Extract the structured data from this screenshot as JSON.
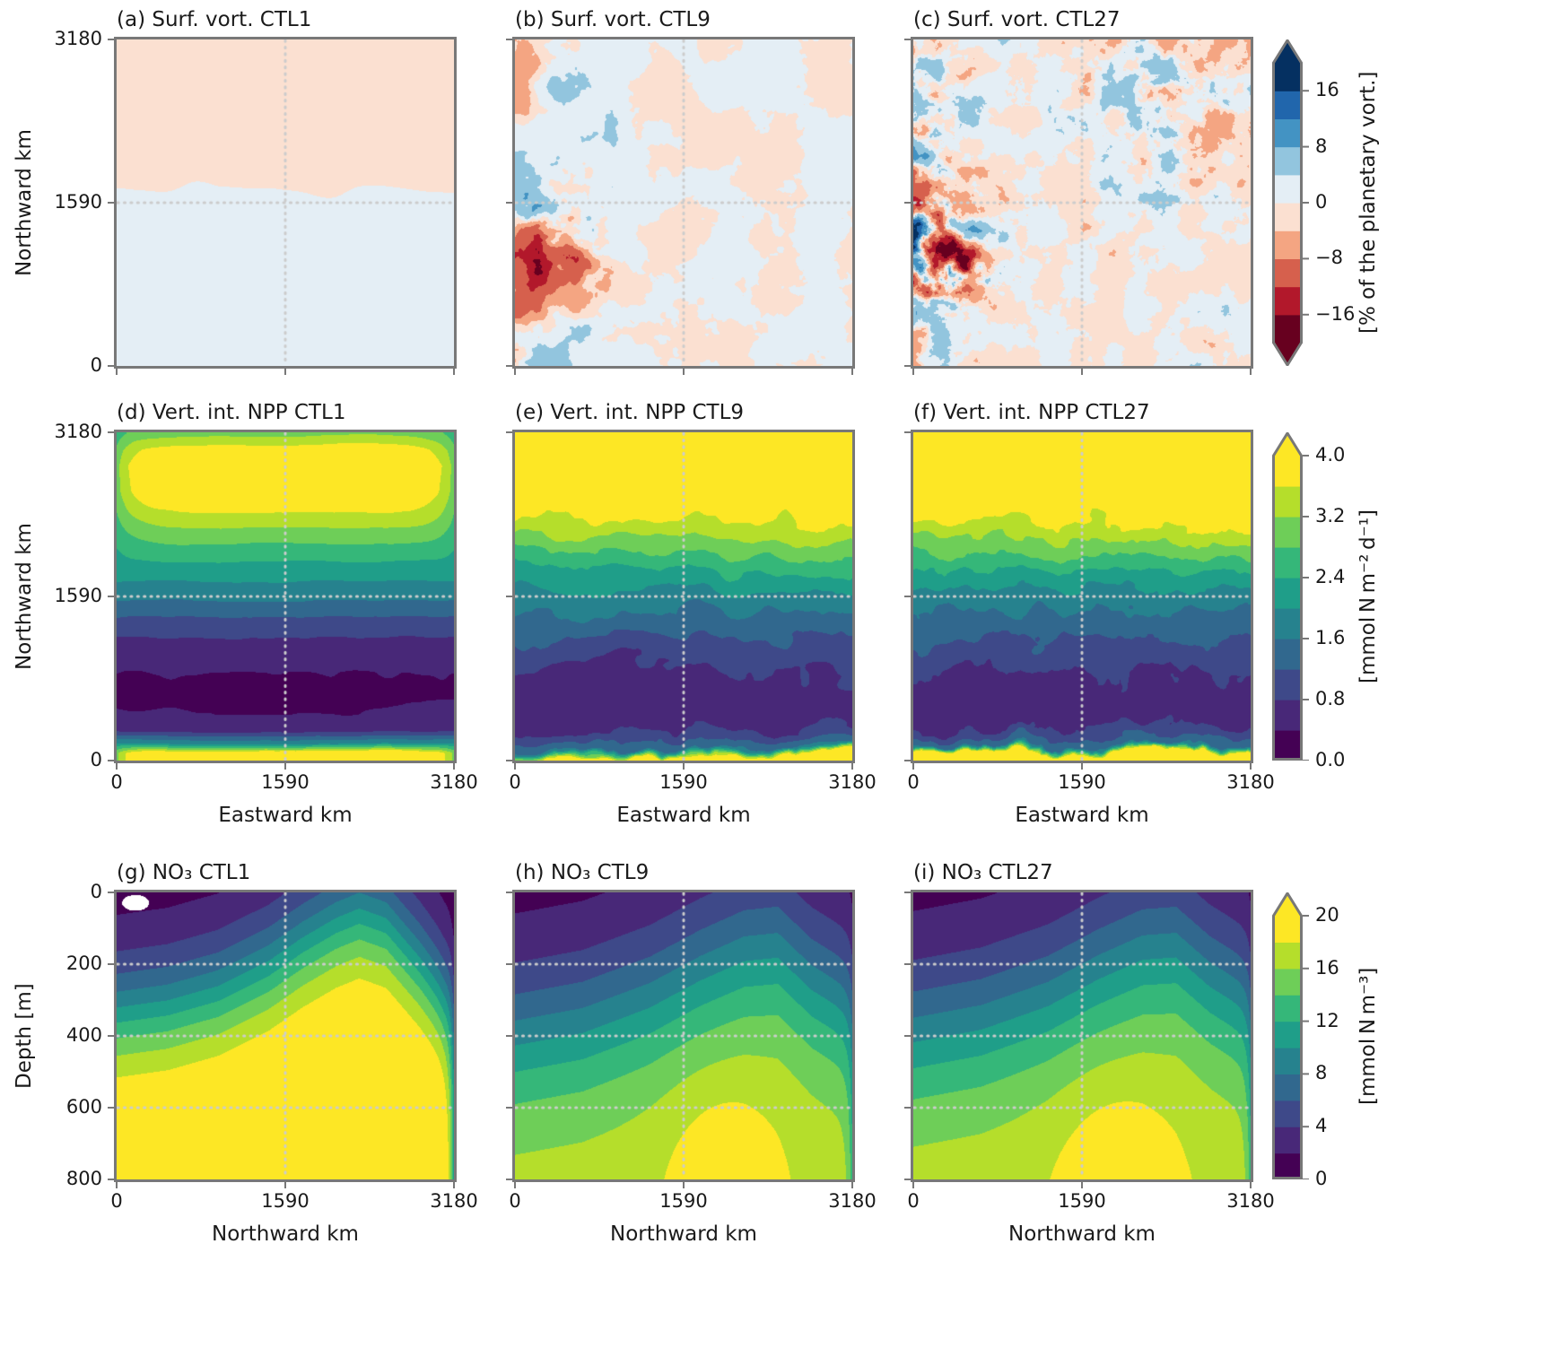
{
  "figure": {
    "background": "#ffffff",
    "text_color": "#1a1a1a",
    "spine_color": "#787878",
    "tick_color": "#787878",
    "gridline_color": "#cccccc"
  },
  "chart_data": {
    "type": "heatmap",
    "grid": "3 rows x 3 columns; columns are model resolutions CTL1, CTL9, CTL27",
    "resolutions": [
      "CTL1",
      "CTL9",
      "CTL27"
    ],
    "rows": [
      {
        "name": "surface-vorticity",
        "panels": [
          {
            "id": "a",
            "title": "(a) Surf. vort. CTL1",
            "field": {
              "kind": "smooth_split",
              "split": 0.53,
              "amplitude": 2.4,
              "noise_amp": 0.8,
              "noise_freq": 3,
              "octaves": 3,
              "seed": 11
            }
          },
          {
            "id": "b",
            "title": "(b) Surf. vort. CTL9",
            "field": {
              "kind": "turbulence",
              "seed": 22,
              "freq": 6.5,
              "octaves": 5,
              "sharpen": 0.7,
              "base_amp": 4.5,
              "left_amp": 10,
              "left_decay": 0.18,
              "blobs": [
                {
                  "x": 0.1,
                  "y": 0.6,
                  "r": 0.15,
                  "amp": 15
                },
                {
                  "x": 0.18,
                  "y": 0.72,
                  "r": 0.1,
                  "amp": 12
                },
                {
                  "x": 0.45,
                  "y": 0.45,
                  "r": 0.25,
                  "amp": 4
                }
              ]
            }
          },
          {
            "id": "c",
            "title": "(c) Surf. vort. CTL27",
            "field": {
              "kind": "turbulence",
              "seed": 33,
              "freq": 12,
              "octaves": 5,
              "sharpen": 0.7,
              "base_amp": 7,
              "left_amp": 11,
              "left_decay": 0.16,
              "blobs": [
                {
                  "x": 0.05,
                  "y": 0.62,
                  "r": 0.13,
                  "amp": 17
                },
                {
                  "x": 0.13,
                  "y": 0.73,
                  "r": 0.1,
                  "amp": 14
                },
                {
                  "x": 0.82,
                  "y": 0.12,
                  "r": 0.3,
                  "amp": 6
                }
              ]
            }
          }
        ],
        "x_axis": {
          "label": "",
          "range": [
            0,
            3180
          ],
          "tick_values": [
            0,
            1590,
            3180
          ],
          "tick_labels": [],
          "shared_with_row_below": true
        },
        "y_axis": {
          "label": "Northward km",
          "range": [
            0,
            3180
          ],
          "tick_values": [
            0,
            1590,
            3180
          ],
          "tick_labels": [
            "0",
            "1590",
            "3180"
          ]
        },
        "gridlines": {
          "x_km": [
            1590
          ],
          "y_km": [
            1590
          ]
        },
        "colorbar": {
          "label": "[% of the planetary vort.]",
          "tick_values": [
            16,
            8,
            0,
            -8,
            -16
          ],
          "tick_labels": [
            "16",
            "8",
            "0",
            "−8",
            "−16"
          ],
          "range": [
            -20,
            20
          ],
          "level_step": 4,
          "extend": "both",
          "colors": [
            "#67001f",
            "#b2182b",
            "#d6604d",
            "#f4a582",
            "#fbe0d1",
            "#e4eef5",
            "#92c5de",
            "#4393c3",
            "#2166ac",
            "#053061"
          ]
        }
      },
      {
        "name": "vertically-integrated-npp",
        "panels": [
          {
            "id": "d",
            "title": "(d) Vert. int. NPP CTL1",
            "north_profile": [
              [
                0,
                4.3
              ],
              [
                0.02,
                4.3
              ],
              [
                0.05,
                2.0
              ],
              [
                0.09,
                0.7
              ],
              [
                0.14,
                0.42
              ],
              [
                0.2,
                0.34
              ],
              [
                0.27,
                0.42
              ],
              [
                0.34,
                0.62
              ],
              [
                0.42,
                1.05
              ],
              [
                0.5,
                1.7
              ],
              [
                0.57,
                2.15
              ],
              [
                0.64,
                2.62
              ],
              [
                0.7,
                3.1
              ],
              [
                0.76,
                3.62
              ],
              [
                0.82,
                4.02
              ],
              [
                0.9,
                4.15
              ],
              [
                0.95,
                3.8
              ],
              [
                1,
                3.05
              ]
            ],
            "field": {
              "distort_amp": 0.006,
              "distort_freq": 4,
              "noise_amp": 0.06,
              "noise_freq": 6,
              "seed": 44,
              "edge_damp": 1.0
            }
          },
          {
            "id": "e",
            "title": "(e) Vert. int. NPP CTL9",
            "north_profile": [
              [
                0,
                4.3
              ],
              [
                0.015,
                4.2
              ],
              [
                0.04,
                1.6
              ],
              [
                0.09,
                0.75
              ],
              [
                0.16,
                0.58
              ],
              [
                0.24,
                0.68
              ],
              [
                0.32,
                0.95
              ],
              [
                0.4,
                1.35
              ],
              [
                0.5,
                1.85
              ],
              [
                0.58,
                2.4
              ],
              [
                0.66,
                3.0
              ],
              [
                0.72,
                3.55
              ],
              [
                0.8,
                4.05
              ],
              [
                0.9,
                4.3
              ],
              [
                1,
                3.95
              ]
            ],
            "field": {
              "distort_amp": 0.045,
              "distort_freq": 6,
              "noise_amp": 0.25,
              "noise_freq": 9,
              "seed": 55,
              "edge_damp": 0
            }
          },
          {
            "id": "f",
            "title": "(f) Vert. int. NPP CTL27",
            "north_profile": [
              [
                0,
                4.3
              ],
              [
                0.015,
                4.2
              ],
              [
                0.04,
                1.6
              ],
              [
                0.09,
                0.78
              ],
              [
                0.16,
                0.6
              ],
              [
                0.24,
                0.7
              ],
              [
                0.32,
                0.98
              ],
              [
                0.4,
                1.4
              ],
              [
                0.5,
                1.9
              ],
              [
                0.58,
                2.45
              ],
              [
                0.66,
                3.05
              ],
              [
                0.72,
                3.6
              ],
              [
                0.8,
                4.1
              ],
              [
                0.9,
                4.3
              ],
              [
                1,
                4.0
              ]
            ],
            "field": {
              "distort_amp": 0.04,
              "distort_freq": 9,
              "noise_amp": 0.25,
              "noise_freq": 13,
              "seed": 66,
              "edge_damp": 0
            }
          }
        ],
        "x_axis": {
          "label": "Eastward km",
          "range": [
            0,
            3180
          ],
          "tick_values": [
            0,
            1590,
            3180
          ],
          "tick_labels": [
            "0",
            "1590",
            "3180"
          ]
        },
        "y_axis": {
          "label": "Northward km",
          "range": [
            0,
            3180
          ],
          "tick_values": [
            0,
            1590,
            3180
          ],
          "tick_labels": [
            "0",
            "1590",
            "3180"
          ]
        },
        "gridlines": {
          "x_km": [
            1590
          ],
          "y_km": [
            1590
          ]
        },
        "colorbar": {
          "label": "[mmol N m⁻² d⁻¹]",
          "tick_values": [
            4.0,
            3.2,
            2.4,
            1.6,
            0.8,
            0.0
          ],
          "tick_labels": [
            "4.0",
            "3.2",
            "2.4",
            "1.6",
            "0.8",
            "0.0"
          ],
          "range": [
            0,
            4
          ],
          "level_step": 0.4,
          "extend": "max",
          "colors": [
            "#440154",
            "#482878",
            "#3e4989",
            "#31688e",
            "#26828e",
            "#1f9e89",
            "#35b779",
            "#6ece58",
            "#b5de2b",
            "#fde725"
          ]
        }
      },
      {
        "name": "no3-meridional-depth-section",
        "panels": [
          {
            "id": "g",
            "title": "(g) NO₃ CTL1",
            "nutricline_depth_m": [
              [
                0,
                345
              ],
              [
                0.15,
                325
              ],
              [
                0.3,
                285
              ],
              [
                0.45,
                215
              ],
              [
                0.55,
                150
              ],
              [
                0.65,
                95
              ],
              [
                0.72,
                68
              ],
              [
                0.8,
                95
              ],
              [
                0.9,
                205
              ],
              [
                0.97,
                295
              ],
              [
                1,
                315
              ]
            ],
            "field": {
              "surface_value": 0.3,
              "deep_value": 22,
              "transition_m": 115,
              "right_edge_damp": 0.45,
              "right_edge_scale": 0.015,
              "mask_blob": {
                "x": 0.055,
                "depth_m": 28,
                "rx": 0.04,
                "rdepth_m": 22
              }
            }
          },
          {
            "id": "h",
            "title": "(h) NO₃ CTL9",
            "nutricline_depth_m": [
              [
                0,
                390
              ],
              [
                0.2,
                355
              ],
              [
                0.4,
                285
              ],
              [
                0.55,
                210
              ],
              [
                0.68,
                155
              ],
              [
                0.78,
                145
              ],
              [
                0.88,
                235
              ],
              [
                1,
                305
              ]
            ],
            "field": {
              "surface_value": 0.3,
              "deep_value": 17.6,
              "transition_m": 150,
              "right_edge_damp": 0.25,
              "right_edge_scale": 0.012,
              "deep_bump": {
                "x": 0.62,
                "amp": 2.6,
                "rx": 0.17,
                "depth_m": 800,
                "rdepth_m": 280
              }
            }
          },
          {
            "id": "i",
            "title": "(i) NO₃ CTL27",
            "nutricline_depth_m": [
              [
                0,
                385
              ],
              [
                0.2,
                350
              ],
              [
                0.4,
                285
              ],
              [
                0.55,
                210
              ],
              [
                0.68,
                155
              ],
              [
                0.78,
                148
              ],
              [
                0.88,
                230
              ],
              [
                1,
                300
              ]
            ],
            "field": {
              "surface_value": 0.3,
              "deep_value": 17.8,
              "transition_m": 150,
              "right_edge_damp": 0.25,
              "right_edge_scale": 0.012,
              "deep_bump": {
                "x": 0.6,
                "amp": 2.4,
                "rx": 0.18,
                "depth_m": 800,
                "rdepth_m": 280
              }
            }
          }
        ],
        "x_axis": {
          "label": "Northward km",
          "range": [
            0,
            3180
          ],
          "tick_values": [
            0,
            1590,
            3180
          ],
          "tick_labels": [
            "0",
            "1590",
            "3180"
          ]
        },
        "y_axis": {
          "label": "Depth [m]",
          "range": [
            0,
            800
          ],
          "inverted": true,
          "tick_values": [
            0,
            200,
            400,
            600,
            800
          ],
          "tick_labels": [
            "0",
            "200",
            "400",
            "600",
            "800"
          ]
        },
        "gridlines": {
          "x_km": [
            1590
          ],
          "depth_m": [
            200,
            400,
            600
          ]
        },
        "colorbar": {
          "label": "[mmol N m⁻³]",
          "tick_values": [
            20,
            16,
            12,
            8,
            4,
            0
          ],
          "tick_labels": [
            "20",
            "16",
            "12",
            "8",
            "4",
            "0"
          ],
          "range": [
            0,
            20
          ],
          "level_step": 2,
          "extend": "max",
          "colors": [
            "#440154",
            "#482878",
            "#3e4989",
            "#31688e",
            "#26828e",
            "#1f9e89",
            "#35b779",
            "#6ece58",
            "#b5de2b",
            "#fde725"
          ]
        }
      }
    ]
  }
}
